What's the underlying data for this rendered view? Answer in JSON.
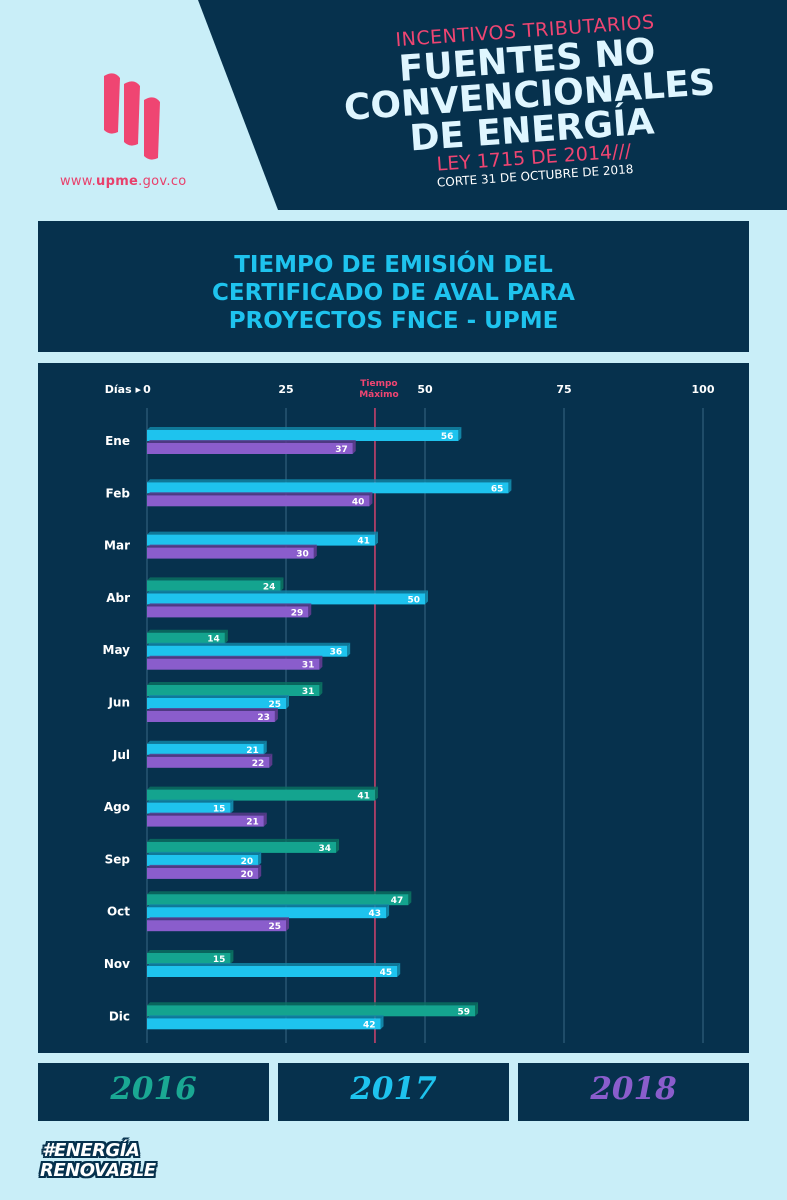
{
  "header": {
    "site_url_prefix": "www.",
    "site_url_brand": "upme",
    "site_url_suffix": ".gov.co",
    "kicker": "INCENTIVOS TRIBUTARIOS",
    "title_line1": "FUENTES NO",
    "title_line2": "CONVENCIONALES",
    "title_line3": "DE ENERGÍA",
    "law": "LEY 1715 DE 2014///",
    "cutoff": "CORTE 31 DE OCTUBRE DE 2018",
    "colors": {
      "dark": "#06314d",
      "accent": "#ef4572"
    }
  },
  "chart_data": {
    "type": "bar",
    "orientation": "horizontal",
    "title_lines": [
      "TIEMPO DE EMISIÓN DEL",
      "CERTIFICADO DE AVAL PARA",
      "PROYECTOS FNCE - UPME"
    ],
    "axis_label": "Días ▸",
    "xlim": [
      0,
      100
    ],
    "ticks": [
      0,
      25,
      50,
      75,
      100
    ],
    "reference_line": {
      "label_line1": "Tiempo",
      "label_line2": "Máximo",
      "value": 41
    },
    "categories": [
      "Ene",
      "Feb",
      "Mar",
      "Abr",
      "May",
      "Jun",
      "Jul",
      "Ago",
      "Sep",
      "Oct",
      "Nov",
      "Dic"
    ],
    "series": [
      {
        "name": "2016",
        "color": "#14a48f",
        "values": [
          null,
          null,
          null,
          24,
          14,
          31,
          null,
          41,
          34,
          47,
          15,
          59
        ]
      },
      {
        "name": "2017",
        "color": "#1ec3ee",
        "values": [
          56,
          65,
          41,
          50,
          36,
          25,
          21,
          15,
          20,
          43,
          45,
          42
        ]
      },
      {
        "name": "2018",
        "color": "#8a5dcc",
        "values": [
          37,
          40,
          30,
          29,
          31,
          23,
          22,
          21,
          20,
          25,
          null,
          null
        ]
      }
    ],
    "legend_placement": "bottom"
  },
  "legend": [
    {
      "label": "2016",
      "color": "#1aa893"
    },
    {
      "label": "2017",
      "color": "#1ec3ee"
    },
    {
      "label": "2018",
      "color": "#8a5dcc"
    }
  ],
  "footer": {
    "line1": "#ENERGÍA",
    "line2": "RENOVABLE"
  }
}
